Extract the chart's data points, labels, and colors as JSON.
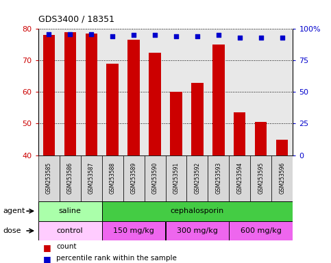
{
  "title": "GDS3400 / 18351",
  "samples": [
    "GSM253585",
    "GSM253586",
    "GSM253587",
    "GSM253588",
    "GSM253589",
    "GSM253590",
    "GSM253591",
    "GSM253592",
    "GSM253593",
    "GSM253594",
    "GSM253595",
    "GSM253596"
  ],
  "bar_values": [
    78,
    79,
    78.5,
    69,
    76.5,
    72.5,
    60,
    63,
    75,
    53.5,
    50.5,
    45
  ],
  "pct_display": [
    96,
    96,
    96,
    94,
    95,
    95,
    94,
    94,
    95,
    93,
    93,
    93
  ],
  "bar_color": "#cc0000",
  "dot_color": "#0000cc",
  "ylim_left": [
    40,
    80
  ],
  "ylim_right": [
    0,
    100
  ],
  "yticks_left": [
    40,
    50,
    60,
    70,
    80
  ],
  "yticks_right": [
    0,
    25,
    50,
    75,
    100
  ],
  "ytick_labels_right": [
    "0",
    "25",
    "50",
    "75",
    "100%"
  ],
  "plot_bg_color": "#e8e8e8",
  "agent_groups": [
    {
      "label": "saline",
      "start": 0,
      "end": 3,
      "color": "#aaffaa"
    },
    {
      "label": "cephalosporin",
      "start": 3,
      "end": 12,
      "color": "#44cc44"
    }
  ],
  "dose_groups": [
    {
      "label": "control",
      "start": 0,
      "end": 3,
      "color": "#ffccff"
    },
    {
      "label": "150 mg/kg",
      "start": 3,
      "end": 6,
      "color": "#ee66ee"
    },
    {
      "label": "300 mg/kg",
      "start": 6,
      "end": 9,
      "color": "#ee66ee"
    },
    {
      "label": "600 mg/kg",
      "start": 9,
      "end": 12,
      "color": "#ee66ee"
    }
  ],
  "legend_count_color": "#cc0000",
  "legend_dot_color": "#0000cc",
  "agent_label": "agent",
  "dose_label": "dose",
  "sample_box_color": "#d8d8d8"
}
